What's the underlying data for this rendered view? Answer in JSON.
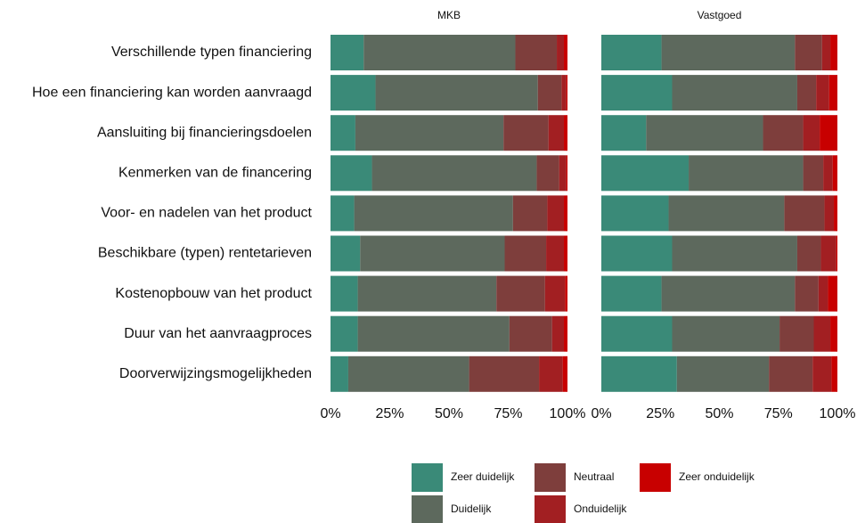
{
  "chart_data": {
    "type": "stacked_bar_horizontal",
    "facets": [
      "MKB",
      "Vastgoed"
    ],
    "categories": [
      "Verschillende typen financiering",
      "Hoe een financiering kan worden aanvraagd",
      "Aansluiting bij  financieringsdoelen",
      "Kenmerken van de financering",
      "Voor- en nadelen van het product",
      "Beschikbare (typen) rentetarieven",
      "Kostenopbouw van het product",
      "Duur van het aanvraagproces",
      "Doorverwijzingsmogelijkheden"
    ],
    "series": [
      {
        "name": "Zeer duidelijk",
        "color": "#3a8a78",
        "values": [
          [
            14,
            19,
            10.5,
            17.5,
            10,
            12.5,
            11.5,
            11.5,
            7.5
          ],
          [
            25.5,
            30,
            19,
            37,
            28.5,
            30,
            25.5,
            30,
            32
          ]
        ]
      },
      {
        "name": "Duidelijk",
        "color": "#5d695d",
        "values": [
          [
            64,
            68.5,
            62.5,
            69.5,
            67,
            61,
            58.5,
            64,
            51
          ],
          [
            56.5,
            53,
            49.5,
            48.5,
            49,
            53,
            56.5,
            45.5,
            39
          ]
        ]
      },
      {
        "name": "Neutraal",
        "color": "#7e3e3c",
        "values": [
          [
            17.5,
            10,
            19,
            9.5,
            14.5,
            17.5,
            20.5,
            18,
            29.5
          ],
          [
            11.5,
            8,
            17,
            8.5,
            17,
            10,
            10,
            14.5,
            18.5
          ]
        ]
      },
      {
        "name": "Onduidelijk",
        "color": "#a21f22",
        "values": [
          [
            3,
            2,
            6.5,
            3,
            7,
            7.5,
            8.5,
            5,
            10
          ],
          [
            3.5,
            5.5,
            7,
            4,
            4,
            6.5,
            4,
            7,
            8
          ]
        ]
      },
      {
        "name": "Zeer onduidelijk",
        "color": "#c80000",
        "values": [
          [
            1.5,
            0.5,
            1.5,
            0.5,
            1.5,
            1.5,
            1,
            1.5,
            2
          ],
          [
            3,
            3.5,
            7.5,
            2,
            1.5,
            0.5,
            4,
            3,
            2.5
          ]
        ]
      }
    ],
    "xlim": [
      0,
      100
    ],
    "xticks": [
      {
        "value": 0,
        "label": "0%"
      },
      {
        "value": 25,
        "label": "25%"
      },
      {
        "value": 50,
        "label": "50%"
      },
      {
        "value": 75,
        "label": "75%"
      },
      {
        "value": 100,
        "label": "100%"
      }
    ]
  }
}
